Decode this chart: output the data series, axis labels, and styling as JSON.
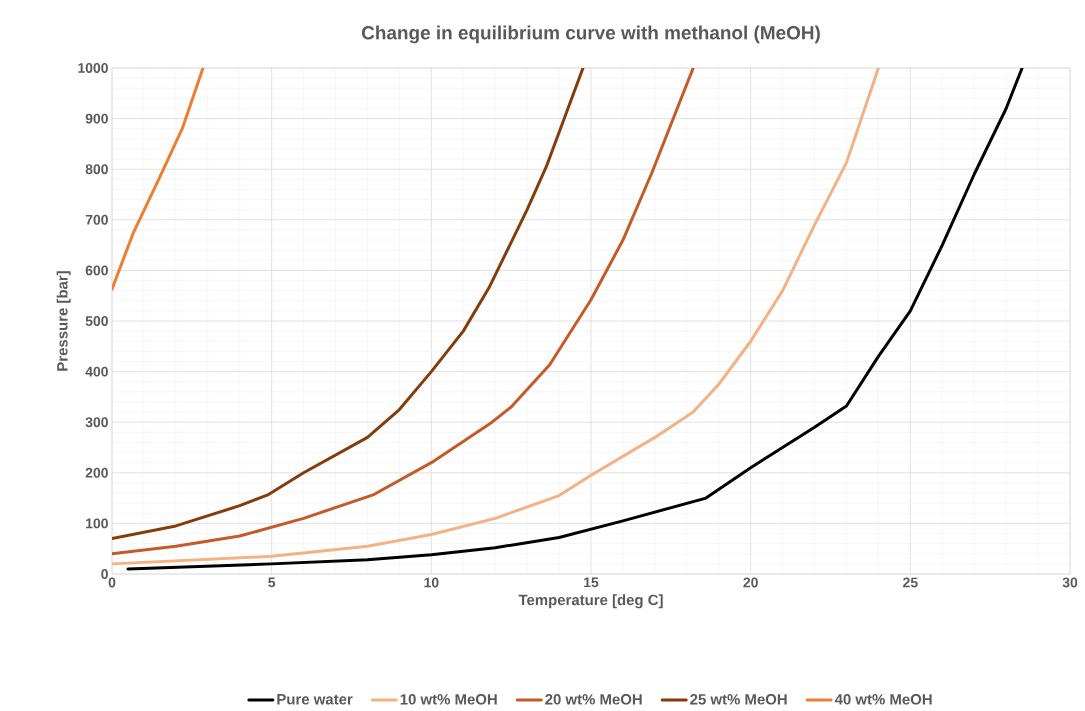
{
  "chart_data": {
    "type": "line",
    "title": "Change in equilibrium curve with methanol (MeOH)",
    "xlabel": "Temperature [deg C]",
    "ylabel": "Pressure [bar]",
    "xlim": [
      0,
      30
    ],
    "ylim": [
      0,
      1000
    ],
    "xticks": [
      0,
      5,
      10,
      15,
      20,
      25,
      30
    ],
    "yticks": [
      0,
      100,
      200,
      300,
      400,
      500,
      600,
      700,
      800,
      900,
      1000
    ],
    "grid": true,
    "legend": "bottom",
    "marker": "none",
    "line_style": "solid",
    "series": [
      {
        "name": "Pure water",
        "color": "#000000",
        "x": [
          0.5,
          5,
          8,
          10,
          12,
          14,
          16,
          18.6,
          20,
          22,
          23,
          24,
          25,
          26,
          27,
          28,
          28.5
        ],
        "values": [
          10,
          20,
          28,
          38,
          52,
          72,
          105,
          150,
          210,
          290,
          332,
          430,
          520,
          650,
          790,
          920,
          1000
        ]
      },
      {
        "name": "10 wt% MeOH",
        "color": "#f4b183",
        "x": [
          0,
          5,
          8,
          10,
          12,
          14,
          15,
          17,
          18.2,
          19,
          20,
          21,
          22,
          23,
          24
        ],
        "values": [
          20,
          35,
          55,
          78,
          110,
          155,
          195,
          270,
          320,
          375,
          460,
          560,
          690,
          813,
          1000
        ]
      },
      {
        "name": "20 wt% MeOH",
        "color": "#c55a28",
        "x": [
          0,
          2,
          4,
          6,
          8.2,
          10,
          11.9,
          12.5,
          13.7,
          15,
          16,
          16.9,
          18.2
        ],
        "values": [
          40,
          55,
          75,
          110,
          157,
          220,
          300,
          330,
          413,
          542,
          660,
          792,
          1000
        ]
      },
      {
        "name": "25 wt% MeOH",
        "color": "#843c0c",
        "x": [
          0,
          2,
          4,
          4.9,
          6,
          8,
          9,
          10,
          11,
          11.8,
          13,
          13.6,
          14.75
        ],
        "values": [
          70,
          95,
          135,
          157,
          200,
          270,
          325,
          400,
          480,
          565,
          720,
          805,
          1000
        ]
      },
      {
        "name": "40 wt% MeOH",
        "color": "#ed7d31",
        "x": [
          0,
          0.66,
          1.5,
          2.2,
          2.85
        ],
        "values": [
          563,
          673,
          785,
          880,
          1000
        ]
      }
    ]
  }
}
